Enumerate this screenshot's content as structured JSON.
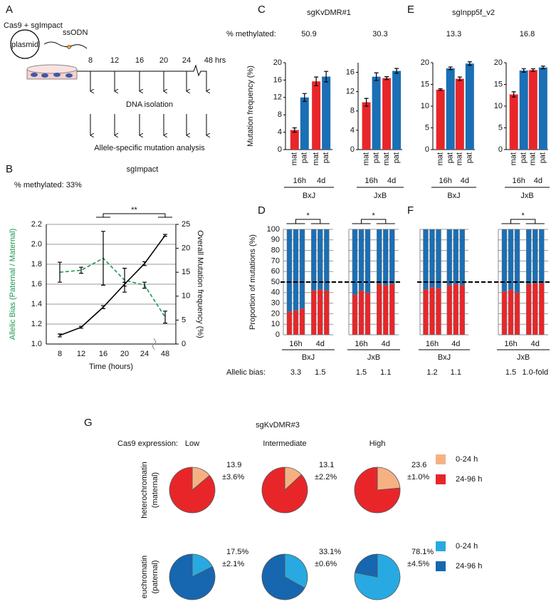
{
  "diagram": {
    "panel": "A",
    "inputs": [
      "Cas9 + sgImpact",
      "ssODN"
    ],
    "vessel": "plasmid",
    "timepoints": [
      "8",
      "12",
      "16",
      "20",
      "24",
      "48 hrs"
    ],
    "steps": [
      "DNA isolation",
      "Allele-specific mutation analysis"
    ]
  },
  "chart_data": [
    {
      "panel": "B",
      "type": "line",
      "title": "sgImpact",
      "subtitle": "% methylated: 33%",
      "x_label": "Time (hours)",
      "y_label": "Allelic Bias (Paternal / Maternal)",
      "y2_label": "Overall Mutation frequency (%)",
      "categories": [
        "8",
        "12",
        "16",
        "20",
        "24",
        "48"
      ],
      "ylim": [
        1,
        2.2
      ],
      "yticks": [
        {
          "value": 1,
          "label": "1.0"
        },
        1.2,
        1.4,
        1.6,
        1.8,
        {
          "value": 2,
          "label": "2.0"
        },
        2.2
      ],
      "y2lim": [
        0,
        25
      ],
      "y2ticks": [
        0,
        5,
        10,
        15,
        20,
        25
      ],
      "grid": true,
      "series": [
        {
          "color": "#1a9850",
          "dash": true,
          "values": [
            1.72,
            1.74,
            1.86,
            1.64,
            1.59,
            1.27
          ],
          "errors": [
            0.1,
            0.03,
            0.27,
            0.12,
            0.03,
            0.06
          ]
        },
        {
          "color": "#000000",
          "axis": "y2",
          "values": [
            1.8,
            3.5,
            7.7,
            12.5,
            16.8,
            22.7
          ],
          "errors": [
            0.3,
            0.2,
            0.3,
            0.4,
            0.4,
            0.2
          ]
        }
      ],
      "annotation": "**"
    },
    {
      "panel": "C",
      "type": "bar",
      "title": "sgKvDMR#1",
      "header": "% methylated:",
      "y_label": "Mutation frequency (%)",
      "subplots": [
        {
          "methylated": 50.9,
          "strain": "BxJ",
          "groups": [
            "16h",
            "4d"
          ],
          "ylim": [
            0,
            20
          ],
          "yticks": [
            0,
            4,
            8,
            12,
            16,
            20
          ],
          "series": [
            {
              "name": "mat",
              "color": "#e8262a",
              "values": [
                4.5,
                15.7
              ],
              "errors": [
                0.5,
                1.0
              ]
            },
            {
              "name": "pat",
              "color": "#1a6fb5",
              "values": [
                12,
                16.8
              ],
              "errors": [
                0.9,
                1.2
              ]
            }
          ]
        },
        {
          "methylated": 30.3,
          "strain": "JxB",
          "groups": [
            "16h",
            "4d"
          ],
          "ylim": [
            0,
            18
          ],
          "yticks": [
            0,
            4,
            8,
            12,
            16
          ],
          "series": [
            {
              "name": "mat",
              "color": "#e8262a",
              "values": [
                9.8,
                14.8
              ],
              "errors": [
                0.8,
                0.3
              ]
            },
            {
              "name": "pat",
              "color": "#1a6fb5",
              "values": [
                15.1,
                16.3
              ],
              "errors": [
                0.8,
                0.5
              ]
            }
          ]
        }
      ]
    },
    {
      "panel": "D",
      "type": "stacked-bar",
      "y_label": "Proportion of mutations (%)",
      "bias_label": "Allelic bias:",
      "ylim": [
        0,
        100
      ],
      "yticks": [
        0,
        10,
        20,
        30,
        40,
        50,
        60,
        70,
        80,
        90,
        100
      ],
      "refline": 50,
      "subplots": [
        {
          "strain": "BxJ",
          "groups": [
            "16h",
            "4d"
          ],
          "annotation": "*",
          "series": [
            {
              "color": "#e8262a",
              "values": [
                22,
                23,
                25,
                42,
                43,
                42
              ]
            },
            {
              "color": "#1a6fb5",
              "values": [
                78,
                77,
                75,
                58,
                57,
                58
              ]
            }
          ],
          "allelic_bias": {
            "values": [
              3.3,
              1.5
            ]
          }
        },
        {
          "strain": "JxB",
          "groups": [
            "16h",
            "4d"
          ],
          "annotation": "*",
          "series": [
            {
              "color": "#e8262a",
              "values": [
                38,
                42,
                40,
                48,
                47,
                48
              ]
            },
            {
              "color": "#1a6fb5",
              "values": [
                62,
                58,
                60,
                52,
                53,
                52
              ]
            }
          ],
          "allelic_bias": {
            "values": [
              1.5,
              1.1
            ]
          }
        }
      ]
    },
    {
      "panel": "E",
      "type": "bar",
      "title": "sgInpp5f_v2",
      "subplots": [
        {
          "methylated": 13.3,
          "strain": "BxJ",
          "groups": [
            "16h",
            "4d"
          ],
          "ylim": [
            0,
            20
          ],
          "yticks": [
            0,
            5,
            10,
            15,
            20
          ],
          "series": [
            {
              "name": "mat",
              "color": "#e8262a",
              "values": [
                13.8,
                16.3
              ],
              "errors": [
                0.2,
                0.4
              ]
            },
            {
              "name": "pat",
              "color": "#1a6fb5",
              "values": [
                18.7,
                19.8
              ],
              "errors": [
                0.3,
                0.4
              ]
            }
          ]
        },
        {
          "methylated": 16.8,
          "strain": "JxB",
          "groups": [
            "16h",
            "4d"
          ],
          "ylim": [
            0,
            20
          ],
          "yticks": [
            0,
            5,
            10,
            15,
            20
          ],
          "series": [
            {
              "name": "mat",
              "color": "#e8262a",
              "values": [
                12.7,
                18.3
              ],
              "errors": [
                0.6,
                0.3
              ]
            },
            {
              "name": "pat",
              "color": "#1a6fb5",
              "values": [
                18.2,
                18.9
              ],
              "errors": [
                0.4,
                0.3
              ]
            }
          ]
        }
      ]
    },
    {
      "panel": "F",
      "type": "stacked-bar",
      "ylim": [
        0,
        100
      ],
      "yticks": [
        0,
        10,
        20,
        30,
        40,
        50,
        60,
        70,
        80,
        90,
        100
      ],
      "refline": 50,
      "subplots": [
        {
          "strain": "BxJ",
          "groups": [
            "16h",
            "4d"
          ],
          "series": [
            {
              "color": "#e8262a",
              "values": [
                43,
                45,
                44,
                47,
                48,
                47
              ]
            },
            {
              "color": "#1a6fb5",
              "values": [
                57,
                55,
                56,
                53,
                52,
                53
              ]
            }
          ],
          "allelic_bias": {
            "values": [
              1.2,
              1.1
            ]
          }
        },
        {
          "strain": "JxB",
          "groups": [
            "16h",
            "4d"
          ],
          "annotation": "*",
          "series": [
            {
              "color": "#e8262a",
              "values": [
                41,
                43,
                40,
                48,
                49,
                49
              ]
            },
            {
              "color": "#1a6fb5",
              "values": [
                59,
                57,
                60,
                52,
                51,
                51
              ]
            }
          ],
          "allelic_bias": {
            "values": [
              1.5,
              1.0
            ],
            "value_labels": [
              "1.5",
              "1.0-fold"
            ]
          }
        }
      ]
    },
    {
      "panel": "G",
      "type": "pie",
      "title": "sgKvDMR#3",
      "column_header": "Cas9 expression:",
      "columns": [
        "Low",
        "Intermediate",
        "High"
      ],
      "rows": [
        {
          "label": [
            "heterochromatin",
            "(maternal)"
          ],
          "series": [
            {
              "name": "0-24 h",
              "color": "#f6b183"
            },
            {
              "name": "24-96 h",
              "color": "#e8262a"
            }
          ],
          "pies": [
            {
              "values": [
                13.9,
                86.1
              ],
              "error": {
                "value": 3.6,
                "label": "±3.6%"
              }
            },
            {
              "values": [
                13.1,
                86.9
              ],
              "error": {
                "value": 2.2,
                "label": "±2.2%"
              }
            },
            {
              "values": [
                23.6,
                76.4
              ],
              "error": {
                "value": 1.0,
                "label": "±1.0%"
              }
            }
          ]
        },
        {
          "label": [
            "euchromatin",
            "(paternal)"
          ],
          "series": [
            {
              "name": "0-24 h",
              "color": "#29a9e1"
            },
            {
              "name": "24-96 h",
              "color": "#1766b0"
            }
          ],
          "pies": [
            {
              "values": [
                17.5,
                82.5
              ],
              "value_labels": [
                "17.5%",
                null
              ],
              "error": {
                "value": 2.1,
                "label": "±2.1%"
              }
            },
            {
              "values": [
                33.1,
                66.9
              ],
              "value_labels": [
                "33.1%",
                null
              ],
              "error": {
                "value": 0.6,
                "label": "±0.6%"
              }
            },
            {
              "values": [
                78.1,
                21.9
              ],
              "value_labels": [
                "78.1%",
                null
              ],
              "error": {
                "value": 4.5,
                "label": "±4.5%"
              }
            }
          ]
        }
      ]
    }
  ]
}
